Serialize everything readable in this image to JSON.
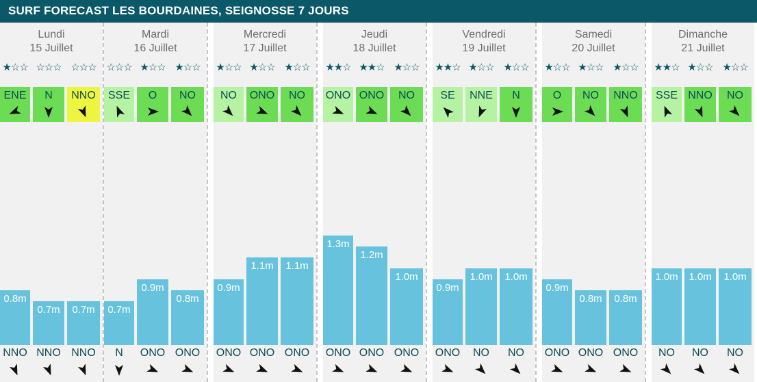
{
  "header": {
    "title": "SURF FORECAST LES BOURDAINES, SEIGNOSSE 7 JOURS"
  },
  "colors": {
    "header_bg": "#0b5868",
    "wave_bar": "#67c3dd",
    "wind_light_green": "#b5f2a1",
    "wind_green": "#6bdc53",
    "wind_yellow": "#eef540",
    "day_bg": "#f1f1f1"
  },
  "chart_data": {
    "type": "bar",
    "title": "SURF FORECAST LES BOURDAINES, SEIGNOSSE 7 JOURS",
    "unit": "m",
    "days": [
      {
        "name": "Lundi",
        "date": "15 Juillet",
        "slots": [
          {
            "stars": 1,
            "wind": "ENE",
            "wind_color": "green",
            "wave": 0.8,
            "wave_label": "0.8m",
            "swell": "NNO"
          },
          {
            "stars": 0,
            "wind": "N",
            "wind_color": "green",
            "wave": 0.7,
            "wave_label": "0.7m",
            "swell": "NNO"
          },
          {
            "stars": 0,
            "wind": "NNO",
            "wind_color": "yellow",
            "wave": 0.7,
            "wave_label": "0.7m",
            "swell": "NNO"
          }
        ]
      },
      {
        "name": "Mardi",
        "date": "16 Juillet",
        "slots": [
          {
            "stars": 0,
            "wind": "SSE",
            "wind_color": "light",
            "wave": 0.7,
            "wave_label": "0.7m",
            "swell": "N"
          },
          {
            "stars": 1,
            "wind": "O",
            "wind_color": "green",
            "wave": 0.9,
            "wave_label": "0.9m",
            "swell": "ONO"
          },
          {
            "stars": 1,
            "wind": "NO",
            "wind_color": "green",
            "wave": 0.8,
            "wave_label": "0.8m",
            "swell": "ONO"
          }
        ]
      },
      {
        "name": "Mercredi",
        "date": "17 Juillet",
        "slots": [
          {
            "stars": 1,
            "wind": "NO",
            "wind_color": "light",
            "wave": 0.9,
            "wave_label": "0.9m",
            "swell": "ONO"
          },
          {
            "stars": 1,
            "wind": "ONO",
            "wind_color": "green",
            "wave": 1.1,
            "wave_label": "1.1m",
            "swell": "ONO"
          },
          {
            "stars": 1,
            "wind": "NO",
            "wind_color": "green",
            "wave": 1.1,
            "wave_label": "1.1m",
            "swell": "ONO"
          }
        ]
      },
      {
        "name": "Jeudi",
        "date": "18 Juillet",
        "slots": [
          {
            "stars": 2,
            "wind": "ONO",
            "wind_color": "light",
            "wave": 1.3,
            "wave_label": "1.3m",
            "swell": "ONO"
          },
          {
            "stars": 2,
            "wind": "ONO",
            "wind_color": "green",
            "wave": 1.2,
            "wave_label": "1.2m",
            "swell": "ONO"
          },
          {
            "stars": 1,
            "wind": "NO",
            "wind_color": "green",
            "wave": 1.0,
            "wave_label": "1.0m",
            "swell": "ONO"
          }
        ]
      },
      {
        "name": "Vendredi",
        "date": "19 Juillet",
        "slots": [
          {
            "stars": 2,
            "wind": "SE",
            "wind_color": "light",
            "wave": 0.9,
            "wave_label": "0.9m",
            "swell": "ONO"
          },
          {
            "stars": 1,
            "wind": "NNE",
            "wind_color": "light",
            "wave": 1.0,
            "wave_label": "1.0m",
            "swell": "NO"
          },
          {
            "stars": 1,
            "wind": "N",
            "wind_color": "green",
            "wave": 1.0,
            "wave_label": "1.0m",
            "swell": "NO"
          }
        ]
      },
      {
        "name": "Samedi",
        "date": "20 Juillet",
        "slots": [
          {
            "stars": 1,
            "wind": "O",
            "wind_color": "green",
            "wave": 0.9,
            "wave_label": "0.9m",
            "swell": "ONO"
          },
          {
            "stars": 1,
            "wind": "NO",
            "wind_color": "green",
            "wave": 0.8,
            "wave_label": "0.8m",
            "swell": "ONO"
          },
          {
            "stars": 1,
            "wind": "NNO",
            "wind_color": "green",
            "wave": 0.8,
            "wave_label": "0.8m",
            "swell": "ONO"
          }
        ]
      },
      {
        "name": "Dimanche",
        "date": "21 Juillet",
        "slots": [
          {
            "stars": 2,
            "wind": "SSE",
            "wind_color": "light",
            "wave": 1.0,
            "wave_label": "1.0m",
            "swell": "NO"
          },
          {
            "stars": 1,
            "wind": "NNO",
            "wind_color": "green",
            "wave": 1.0,
            "wave_label": "1.0m",
            "swell": "NO"
          },
          {
            "stars": 1,
            "wind": "NO",
            "wind_color": "green",
            "wave": 1.0,
            "wave_label": "1.0m",
            "swell": "NO"
          }
        ]
      }
    ]
  }
}
